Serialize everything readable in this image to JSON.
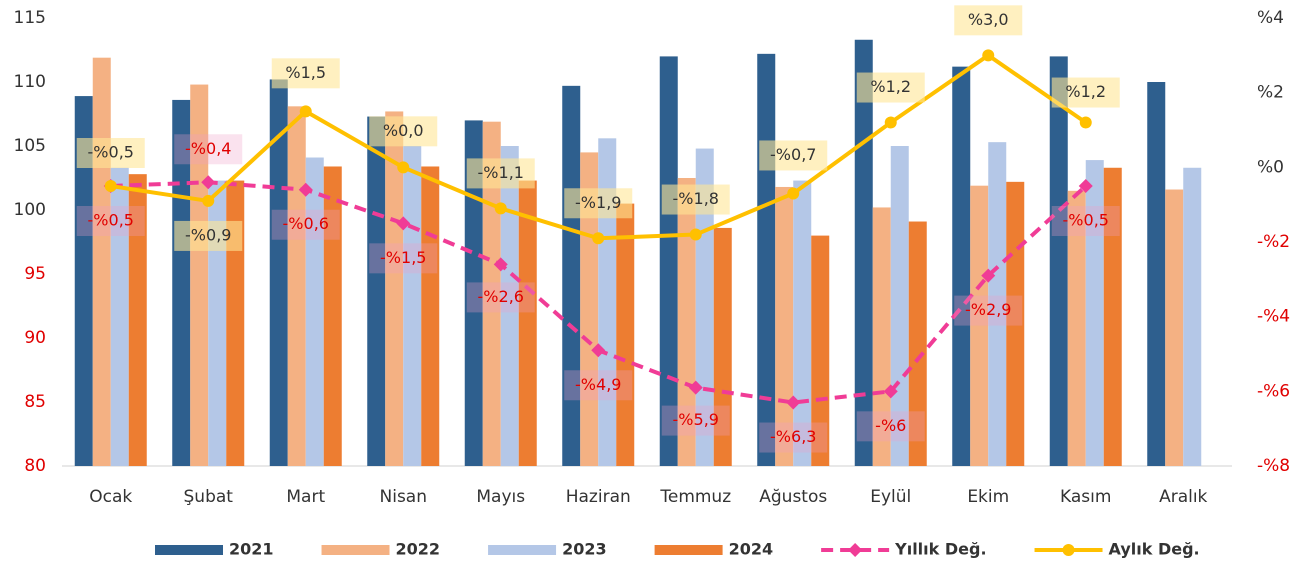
{
  "chart_data": {
    "type": "bar_line",
    "categories": [
      "Ocak",
      "Şubat",
      "Mart",
      "Nisan",
      "Mayıs",
      "Haziran",
      "Temmuz",
      "Ağustos",
      "Eylül",
      "Ekim",
      "Kasım",
      "Aralık"
    ],
    "ylim": [
      80,
      115
    ],
    "yticks": [
      80,
      85,
      90,
      95,
      100,
      105,
      110,
      115
    ],
    "ytick_colors": [
      "#e00000",
      "#e00000",
      "#e00000",
      "#e00000",
      "#333333",
      "#333333",
      "#333333",
      "#333333"
    ],
    "y2lim": [
      -8,
      4
    ],
    "y2ticks": [
      {
        "value": -8,
        "label": "-%8"
      },
      {
        "value": -6,
        "label": "-%6"
      },
      {
        "value": -4,
        "label": "-%4"
      },
      {
        "value": -2,
        "label": "-%2"
      },
      {
        "value": 0,
        "label": "%0"
      },
      {
        "value": 2,
        "label": "%2"
      },
      {
        "value": 4,
        "label": "%4"
      }
    ],
    "y2tick_colors": [
      "#e00000",
      "#e00000",
      "#e00000",
      "#e00000",
      "#333333",
      "#333333",
      "#333333"
    ],
    "series": [
      {
        "name": "2021",
        "type": "bar",
        "color": "#2e5f8e",
        "values": [
          108.9,
          108.6,
          110.2,
          107.3,
          107.0,
          109.7,
          112.0,
          112.2,
          113.3,
          111.2,
          112.0,
          110.0
        ]
      },
      {
        "name": "2022",
        "type": "bar",
        "color": "#f4b183",
        "values": [
          111.9,
          109.8,
          108.1,
          107.7,
          106.9,
          104.5,
          102.5,
          101.8,
          100.2,
          101.9,
          101.5,
          101.6
        ]
      },
      {
        "name": "2023",
        "type": "bar",
        "color": "#b4c7e7",
        "values": [
          103.3,
          102.3,
          104.1,
          105.0,
          105.0,
          105.6,
          104.8,
          102.3,
          105.0,
          105.3,
          103.9,
          103.3
        ]
      },
      {
        "name": "2024",
        "type": "bar",
        "color": "#ed7d31",
        "values": [
          102.8,
          102.3,
          103.4,
          103.4,
          102.3,
          100.5,
          98.6,
          98.0,
          99.1,
          102.2,
          103.3,
          null
        ]
      },
      {
        "name": "Yıllık Değ.",
        "type": "line",
        "axis": "y2",
        "dashed": true,
        "marker": "diamond",
        "color": "#f03c96",
        "label_color": "#e00000",
        "values": [
          -0.5,
          -0.4,
          -0.6,
          -1.5,
          -2.6,
          -4.9,
          -5.9,
          -6.3,
          -6,
          -2.9,
          -0.5,
          null
        ],
        "value_labels": [
          "-%0,5",
          "-%0,4",
          "-%0,6",
          "-%1,5",
          "-%2,6",
          "-%4,9",
          "-%5,9",
          "-%6,3",
          "-%6",
          "-%2,9",
          "-%0,5",
          null
        ]
      },
      {
        "name": "Aylık Değ.",
        "type": "line",
        "axis": "y2",
        "dashed": false,
        "marker": "circle",
        "color": "#ffc000",
        "label_color": "#333333",
        "values": [
          -0.5,
          -0.9,
          1.5,
          0.0,
          -1.1,
          -1.9,
          -1.8,
          -0.7,
          1.2,
          3.0,
          1.2,
          null
        ],
        "value_labels": [
          "-%0,5",
          "-%0,9",
          "%1,5",
          "%0,0",
          "-%1,1",
          "-%1,9",
          "-%1,8",
          "-%0,7",
          "%1,2",
          "%3,0",
          "%1,2",
          null
        ]
      }
    ]
  }
}
